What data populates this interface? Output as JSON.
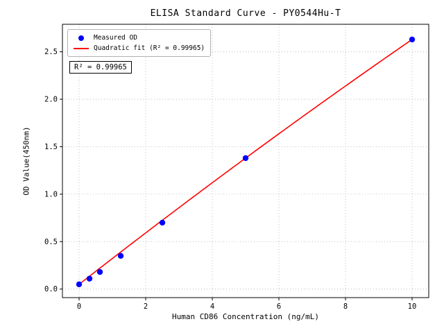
{
  "chart_data": {
    "type": "scatter",
    "title": "ELISA Standard Curve - PY0544Hu-T",
    "xlabel": "Human CD86 Concentration (ng/mL)",
    "ylabel": "OD Value(450nm)",
    "xlim": [
      -0.5,
      10.5
    ],
    "ylim": [
      -0.09,
      2.79
    ],
    "xticks": [
      0,
      2,
      4,
      6,
      8,
      10
    ],
    "xtick_labels": [
      "0",
      "2",
      "4",
      "6",
      "8",
      "10"
    ],
    "yticks": [
      0.0,
      0.5,
      1.0,
      1.5,
      2.0,
      2.5
    ],
    "ytick_labels": [
      "0.0",
      "0.5",
      "1.0",
      "1.5",
      "2.0",
      "2.5"
    ],
    "grid": true,
    "grid_color": "#b0b0b0",
    "annotation": "R² = 0.99965",
    "legend": {
      "position": "upper left",
      "entries": [
        {
          "label": "Measured OD",
          "marker": "circle",
          "color": "#0000ff"
        },
        {
          "label": "Quadratic fit (R² = 0.99965)",
          "marker": "line",
          "color": "#ff0000"
        }
      ]
    },
    "series": [
      {
        "name": "Measured OD",
        "type": "scatter",
        "color": "#0000ff",
        "x": [
          0,
          0.313,
          0.625,
          1.25,
          2.5,
          5,
          10
        ],
        "y": [
          0.05,
          0.11,
          0.18,
          0.35,
          0.7,
          1.38,
          2.63
        ]
      },
      {
        "name": "Quadratic fit",
        "type": "line",
        "color": "#ff0000",
        "x_range": [
          0,
          10
        ],
        "fit_coefficients": {
          "a": 0.05,
          "b": 0.274,
          "c": -0.0016
        },
        "r_squared": 0.99965
      }
    ]
  }
}
